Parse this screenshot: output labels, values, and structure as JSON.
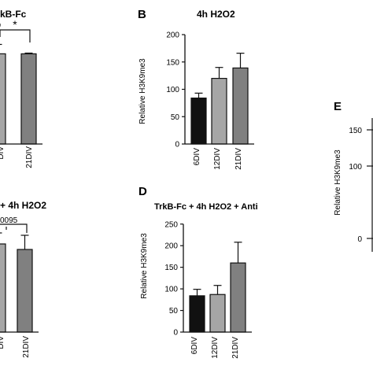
{
  "panels": {
    "A": {
      "letter": "",
      "title": "kB-Fc"
    },
    "B": {
      "letter": "B",
      "title": "4h H2O2"
    },
    "C": {
      "letter": "",
      "title": "+ 4h H2O2",
      "stat_text": "0095"
    },
    "D": {
      "letter": "D",
      "title": "TrkB-Fc + 4h H2O2 +  Anti"
    },
    "E": {
      "letter": "E"
    }
  },
  "chart_data": [
    {
      "id": "A",
      "type": "bar",
      "title": "kB-Fc",
      "categories": [
        "DIV",
        "21DIV"
      ],
      "series": [
        {
          "values": [
            125,
            125
          ]
        }
      ],
      "errors": [
        13,
        1
      ],
      "colors": [
        "#a6a6a6",
        "#808080"
      ],
      "significance": [
        {
          "label": "*"
        }
      ]
    },
    {
      "id": "B",
      "type": "bar",
      "title": "4h H2O2",
      "ylabel": "Relative H3K9me3",
      "ylim": [
        0,
        200
      ],
      "yticks": [
        0,
        50,
        100,
        150,
        200
      ],
      "categories": [
        "6DIV",
        "12DIV",
        "21DIV"
      ],
      "series": [
        {
          "values": [
            84,
            120,
            139
          ]
        }
      ],
      "errors": [
        9,
        20,
        27
      ],
      "colors": [
        "#111111",
        "#a6a6a6",
        "#808080"
      ]
    },
    {
      "id": "C",
      "type": "bar",
      "title": "+ 4h H2O2",
      "categories": [
        "DIV",
        "21DIV"
      ],
      "series": [
        {
          "values": [
            112,
            105
          ]
        }
      ],
      "errors": [
        14,
        18
      ],
      "colors": [
        "#a6a6a6",
        "#808080"
      ],
      "significance": [
        {
          "label": "0095"
        }
      ]
    },
    {
      "id": "D",
      "type": "bar",
      "title": "TrkB-Fc + 4h H2O2 +  Anti",
      "ylabel": "Relative H3K9me3",
      "ylim": [
        0,
        250
      ],
      "yticks": [
        0,
        50,
        100,
        150,
        200,
        250
      ],
      "categories": [
        "6DIV",
        "12DIV",
        "21DIV"
      ],
      "series": [
        {
          "values": [
            84,
            87,
            160
          ]
        }
      ],
      "errors": [
        15,
        21,
        48
      ],
      "colors": [
        "#111111",
        "#a6a6a6",
        "#808080"
      ]
    },
    {
      "id": "E",
      "type": "bar",
      "ylabel": "Relative H3K9me3",
      "yticks": [
        0,
        100,
        150
      ],
      "tick_labels": [
        "0",
        "100",
        "150"
      ]
    }
  ]
}
